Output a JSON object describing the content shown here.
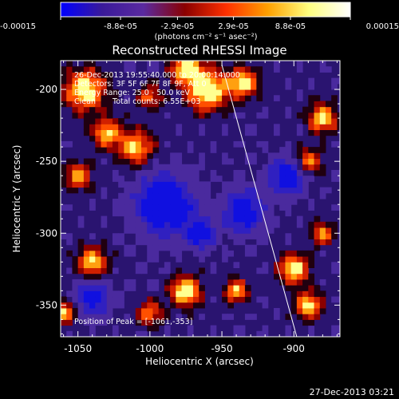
{
  "chart_data": {
    "type": "heatmap",
    "title": "Reconstructed RHESSI Image",
    "xlabel": "Heliocentric X (arcsec)",
    "ylabel": "Heliocentric Y (arcsec)",
    "xlim": [
      -1062,
      -868
    ],
    "ylim": [
      -372,
      -180
    ],
    "x_ticks": [
      -1050,
      -1000,
      -950,
      -900
    ],
    "x_tick_labels": [
      "-1050",
      "-1000",
      "-950",
      "-900"
    ],
    "y_ticks": [
      -200,
      -250,
      -300,
      -350
    ],
    "y_tick_labels": [
      "-200",
      "-250",
      "-300",
      "-350"
    ],
    "colorbar": {
      "min": -0.00015,
      "max": 0.00015,
      "tick_values": [
        -0.00015,
        -8.8e-05,
        -2.9e-05,
        2.9e-05,
        8.8e-05,
        0.00015
      ],
      "tick_labels": [
        "-0.00015",
        "-8.8e-05",
        "-2.9e-05",
        "2.9e-05",
        "8.8e-05",
        "0.00015"
      ],
      "unit_label": "(photons cm⁻² s⁻¹ asec⁻²)",
      "colors": [
        "#0000ff",
        "#3a1a9a",
        "#5a2aa0",
        "#8a0000",
        "#ff3000",
        "#ffa000",
        "#ffff80",
        "#ffffff"
      ]
    },
    "annotations": {
      "time_range": "26-Dec-2013 19:55:40.000 to 20:00:14.000",
      "detectors": "Detectors: 3F 5F 6F 7F 8F 9F, Att 0",
      "energy_range": "Energy Range: 25.0 - 50.0 keV",
      "method": "Clean",
      "total_counts": "Total counts: 6.55E+03",
      "peak_position": "Position of Peak = [-1061,-353]"
    },
    "limb_line": {
      "points": [
        [
          -950,
          -183
        ],
        [
          -898,
          -372
        ]
      ]
    },
    "peak": {
      "x": -1061,
      "y": -353
    }
  },
  "footer": {
    "timestamp": "27-Dec-2013 03:21"
  }
}
